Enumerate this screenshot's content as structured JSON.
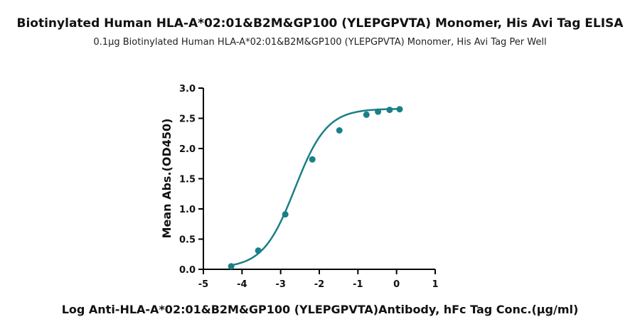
{
  "chart_data": {
    "type": "scatter",
    "title": "Biotinylated Human HLA-A*02:01&B2M&GP100 (YLEPGPVTA) Monomer, His Avi Tag ELISA",
    "subtitle": "0.1μg Biotinylated Human HLA-A*02:01&B2M&GP100 (YLEPGPVTA) Monomer, His Avi Tag Per Well",
    "xlabel": "Log Anti-HLA-A*02:01&B2M&GP100 (YLEPGPVTA)Antibody, hFc Tag Conc.(μg/ml)",
    "ylabel": "Mean Abs.(OD450)",
    "xlim": [
      -5,
      1
    ],
    "ylim": [
      0,
      3.0
    ],
    "xticks": [
      "-5",
      "-4",
      "-3",
      "-2",
      "-1",
      "0",
      "1"
    ],
    "yticks": [
      "0.0",
      "0.5",
      "1.0",
      "1.5",
      "2.0",
      "2.5",
      "3.0"
    ],
    "grid": false,
    "color": "#1a7f86",
    "series": [
      {
        "x": [
          -4.28,
          -3.58,
          -2.88,
          -2.18,
          -1.48,
          -0.78,
          -0.48,
          -0.18,
          0.08
        ],
        "y": [
          0.05,
          0.31,
          0.91,
          1.82,
          2.3,
          2.56,
          2.61,
          2.64,
          2.65
        ],
        "fit": "4PL"
      }
    ]
  }
}
